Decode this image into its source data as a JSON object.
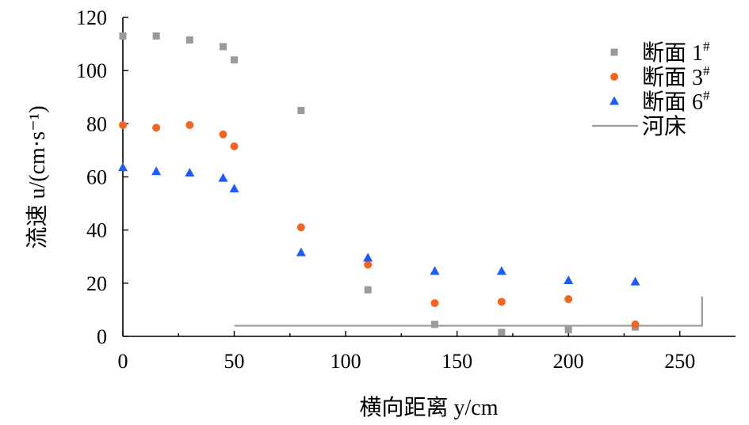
{
  "chart_data": {
    "type": "scatter",
    "xlabel": "横向距离 y/cm",
    "ylabel": "流速 u/(cm·s⁻¹)",
    "xlim": [
      0,
      275
    ],
    "ylim": [
      0,
      120
    ],
    "xticks": [
      0,
      50,
      100,
      150,
      200,
      250
    ],
    "yticks": [
      0,
      20,
      40,
      60,
      80,
      100,
      120
    ],
    "grid": false,
    "legend_position": "top-right",
    "series": [
      {
        "name": "断面 1#",
        "marker": "square",
        "color": "#9a9a9a",
        "x": [
          0,
          15,
          30,
          45,
          50,
          80,
          110,
          140,
          170,
          200,
          230
        ],
        "y": [
          113,
          113,
          111.5,
          109,
          104,
          85,
          17.5,
          4.5,
          1.5,
          2.5,
          3.5
        ]
      },
      {
        "name": "断面 3#",
        "marker": "circle",
        "color": "#f26522",
        "x": [
          0,
          15,
          30,
          45,
          50,
          80,
          110,
          140,
          170,
          200,
          230
        ],
        "y": [
          79.5,
          78.5,
          79.5,
          76,
          71.5,
          41,
          27,
          12.5,
          13,
          14,
          4.5
        ]
      },
      {
        "name": "断面 6#",
        "marker": "triangle",
        "color": "#1f5cf5",
        "x": [
          0,
          15,
          30,
          45,
          50,
          80,
          110,
          140,
          170,
          200,
          230
        ],
        "y": [
          63.5,
          62,
          61.5,
          59.5,
          55.5,
          31.5,
          29.5,
          24.5,
          24.5,
          21,
          20.5
        ]
      },
      {
        "name": "河床",
        "type": "line",
        "color": "#9a9a9a",
        "x": [
          50,
          50,
          260,
          260
        ],
        "y": [
          4,
          4,
          4,
          15
        ]
      }
    ]
  }
}
